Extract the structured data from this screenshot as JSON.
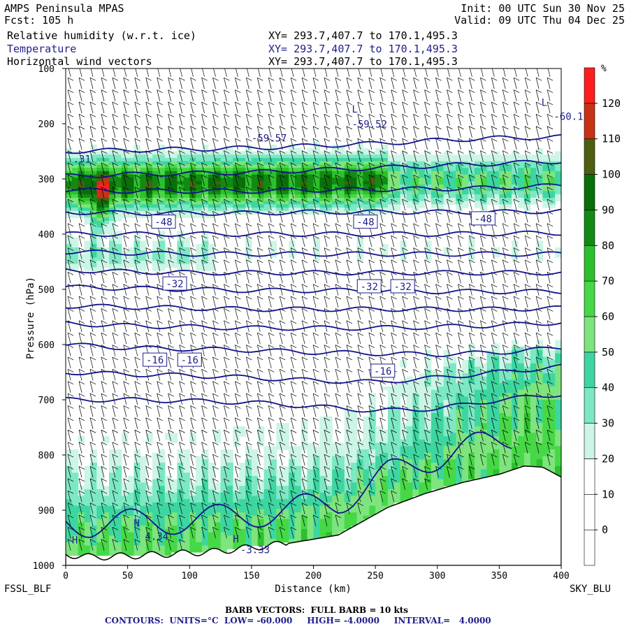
{
  "header": {
    "model": "AMPS Peninsula MPAS",
    "forecast": "Fcst: 105 h",
    "init": "Init: 00 UTC Sun 30 Nov 25",
    "valid": "Valid: 09 UTC Thu 04 Dec 25",
    "fields": [
      {
        "label": "Relative humidity (w.r.t. ice)",
        "xy": "XY= 293.7,407.7 to 170.1,495.3",
        "color": "#000000"
      },
      {
        "label": "Temperature",
        "xy": "XY= 293.7,407.7 to 170.1,495.3",
        "color": "#1e1e8c"
      },
      {
        "label": "Horizontal wind vectors",
        "xy": "XY= 293.7,407.7 to 170.1,495.3",
        "color": "#000000"
      }
    ]
  },
  "footer": {
    "barb": "BARB VECTORS:  FULL BARB = 10 kts",
    "contours": "CONTOURS:  UNITS=°C  LOW= -60.000     HIGH= -4.0000     INTERVAL=   4.0000"
  },
  "chart_data": {
    "type": "heatmap",
    "title": "Relative humidity (w.r.t. ice), Temperature, Horizontal wind vectors",
    "xlabel": "Distance (km)",
    "ylabel": "Pressure (hPa)",
    "xlim": [
      0,
      400
    ],
    "ylim": [
      100,
      1000
    ],
    "xticks": [
      0,
      50,
      100,
      150,
      200,
      250,
      300,
      350,
      400
    ],
    "yticks": [
      100,
      200,
      300,
      400,
      500,
      600,
      700,
      800,
      900,
      1000
    ],
    "left_endpoint": "FSSL_BLF",
    "right_endpoint": "SKY_BLU",
    "colorbar": {
      "unit": "%",
      "levels": [
        0,
        10,
        20,
        30,
        40,
        50,
        60,
        70,
        80,
        90,
        100,
        110,
        120
      ],
      "colors": [
        "#ffffff",
        "#ffffff",
        "#ffffff",
        "#ccf5e6",
        "#7de8c4",
        "#3ed6a0",
        "#7ee47e",
        "#46d846",
        "#2dc02d",
        "#138a13",
        "#0a6e0a",
        "#4d5e10",
        "#c83214",
        "#ff1e1e"
      ]
    },
    "temperature_contours": {
      "units": "°C",
      "low": -60,
      "high": -4,
      "interval": 4,
      "lines": [
        {
          "value": -56,
          "p": [
            250,
            248,
            246,
            244,
            240,
            236,
            230,
            226,
            224
          ]
        },
        {
          "value": -52,
          "p": [
            295,
            292,
            290,
            288,
            284,
            280,
            276,
            272,
            268
          ]
        },
        {
          "value": -48,
          "p": [
            320,
            322,
            322,
            322,
            320,
            319,
            318,
            316,
            312
          ]
        },
        {
          "value": -44,
          "p": [
            360,
            362,
            362,
            362,
            360,
            360,
            360,
            360,
            358
          ]
        },
        {
          "value": -40,
          "p": [
            400,
            400,
            400,
            400,
            400,
            400,
            400,
            399,
            398
          ]
        },
        {
          "value": -36,
          "p": [
            432,
            434,
            436,
            436,
            436,
            436,
            436,
            436,
            436
          ]
        },
        {
          "value": -32,
          "p": [
            465,
            468,
            470,
            470,
            470,
            470,
            470,
            470,
            470
          ]
        },
        {
          "value": -28,
          "p": [
            496,
            498,
            500,
            502,
            502,
            502,
            504,
            504,
            504
          ]
        },
        {
          "value": -24,
          "p": [
            530,
            532,
            534,
            536,
            536,
            536,
            536,
            536,
            534
          ]
        },
        {
          "value": -20,
          "p": [
            562,
            566,
            568,
            570,
            570,
            570,
            568,
            565,
            560
          ]
        },
        {
          "value": -16,
          "p": [
            600,
            606,
            608,
            610,
            614,
            616,
            618,
            614,
            606
          ]
        },
        {
          "value": -12,
          "p": [
            650,
            654,
            656,
            660,
            665,
            668,
            660,
            650,
            640
          ]
        },
        {
          "value": -8,
          "p": [
            700,
            700,
            702,
            705,
            712,
            720,
            716,
            700,
            690
          ]
        }
      ],
      "labels": [
        {
          "text": "-48",
          "x": 79,
          "p": 378
        },
        {
          "text": "-48",
          "x": 242,
          "p": 378
        },
        {
          "text": "-48",
          "x": 337,
          "p": 372
        },
        {
          "text": "-32",
          "x": 88,
          "p": 490
        },
        {
          "text": "-32",
          "x": 245,
          "p": 495
        },
        {
          "text": "-32",
          "x": 272,
          "p": 495
        },
        {
          "text": "-16",
          "x": 72,
          "p": 628
        },
        {
          "text": "-16",
          "x": 100,
          "p": 628
        },
        {
          "text": "-16",
          "x": 256,
          "p": 648
        }
      ],
      "extrema": [
        {
          "text": "-59.57",
          "x": 150,
          "p": 232
        },
        {
          "text": "L",
          "x": 231,
          "p": 180
        },
        {
          "text": "-59.52",
          "x": 231,
          "p": 207
        },
        {
          "text": "L",
          "x": 384,
          "p": 168
        },
        {
          "text": "-60.1",
          "x": 394,
          "p": 193
        },
        {
          "text": ".31",
          "x": 6,
          "p": 270
        },
        {
          "text": "H",
          "x": 5,
          "p": 960
        },
        {
          "text": "H",
          "x": 55,
          "p": 930
        },
        {
          "text": "4.34",
          "x": 64,
          "p": 954
        },
        {
          "text": "H",
          "x": 135,
          "p": 958
        },
        {
          "text": "-3.33",
          "x": 141,
          "p": 978
        }
      ]
    },
    "terrain_surface_p": [
      980,
      985,
      982,
      975,
      960,
      945,
      920,
      895,
      870,
      850,
      835,
      820,
      822,
      840
    ],
    "terrain_x": [
      0,
      20,
      60,
      120,
      180,
      220,
      240,
      260,
      290,
      320,
      350,
      370,
      385,
      400
    ]
  }
}
